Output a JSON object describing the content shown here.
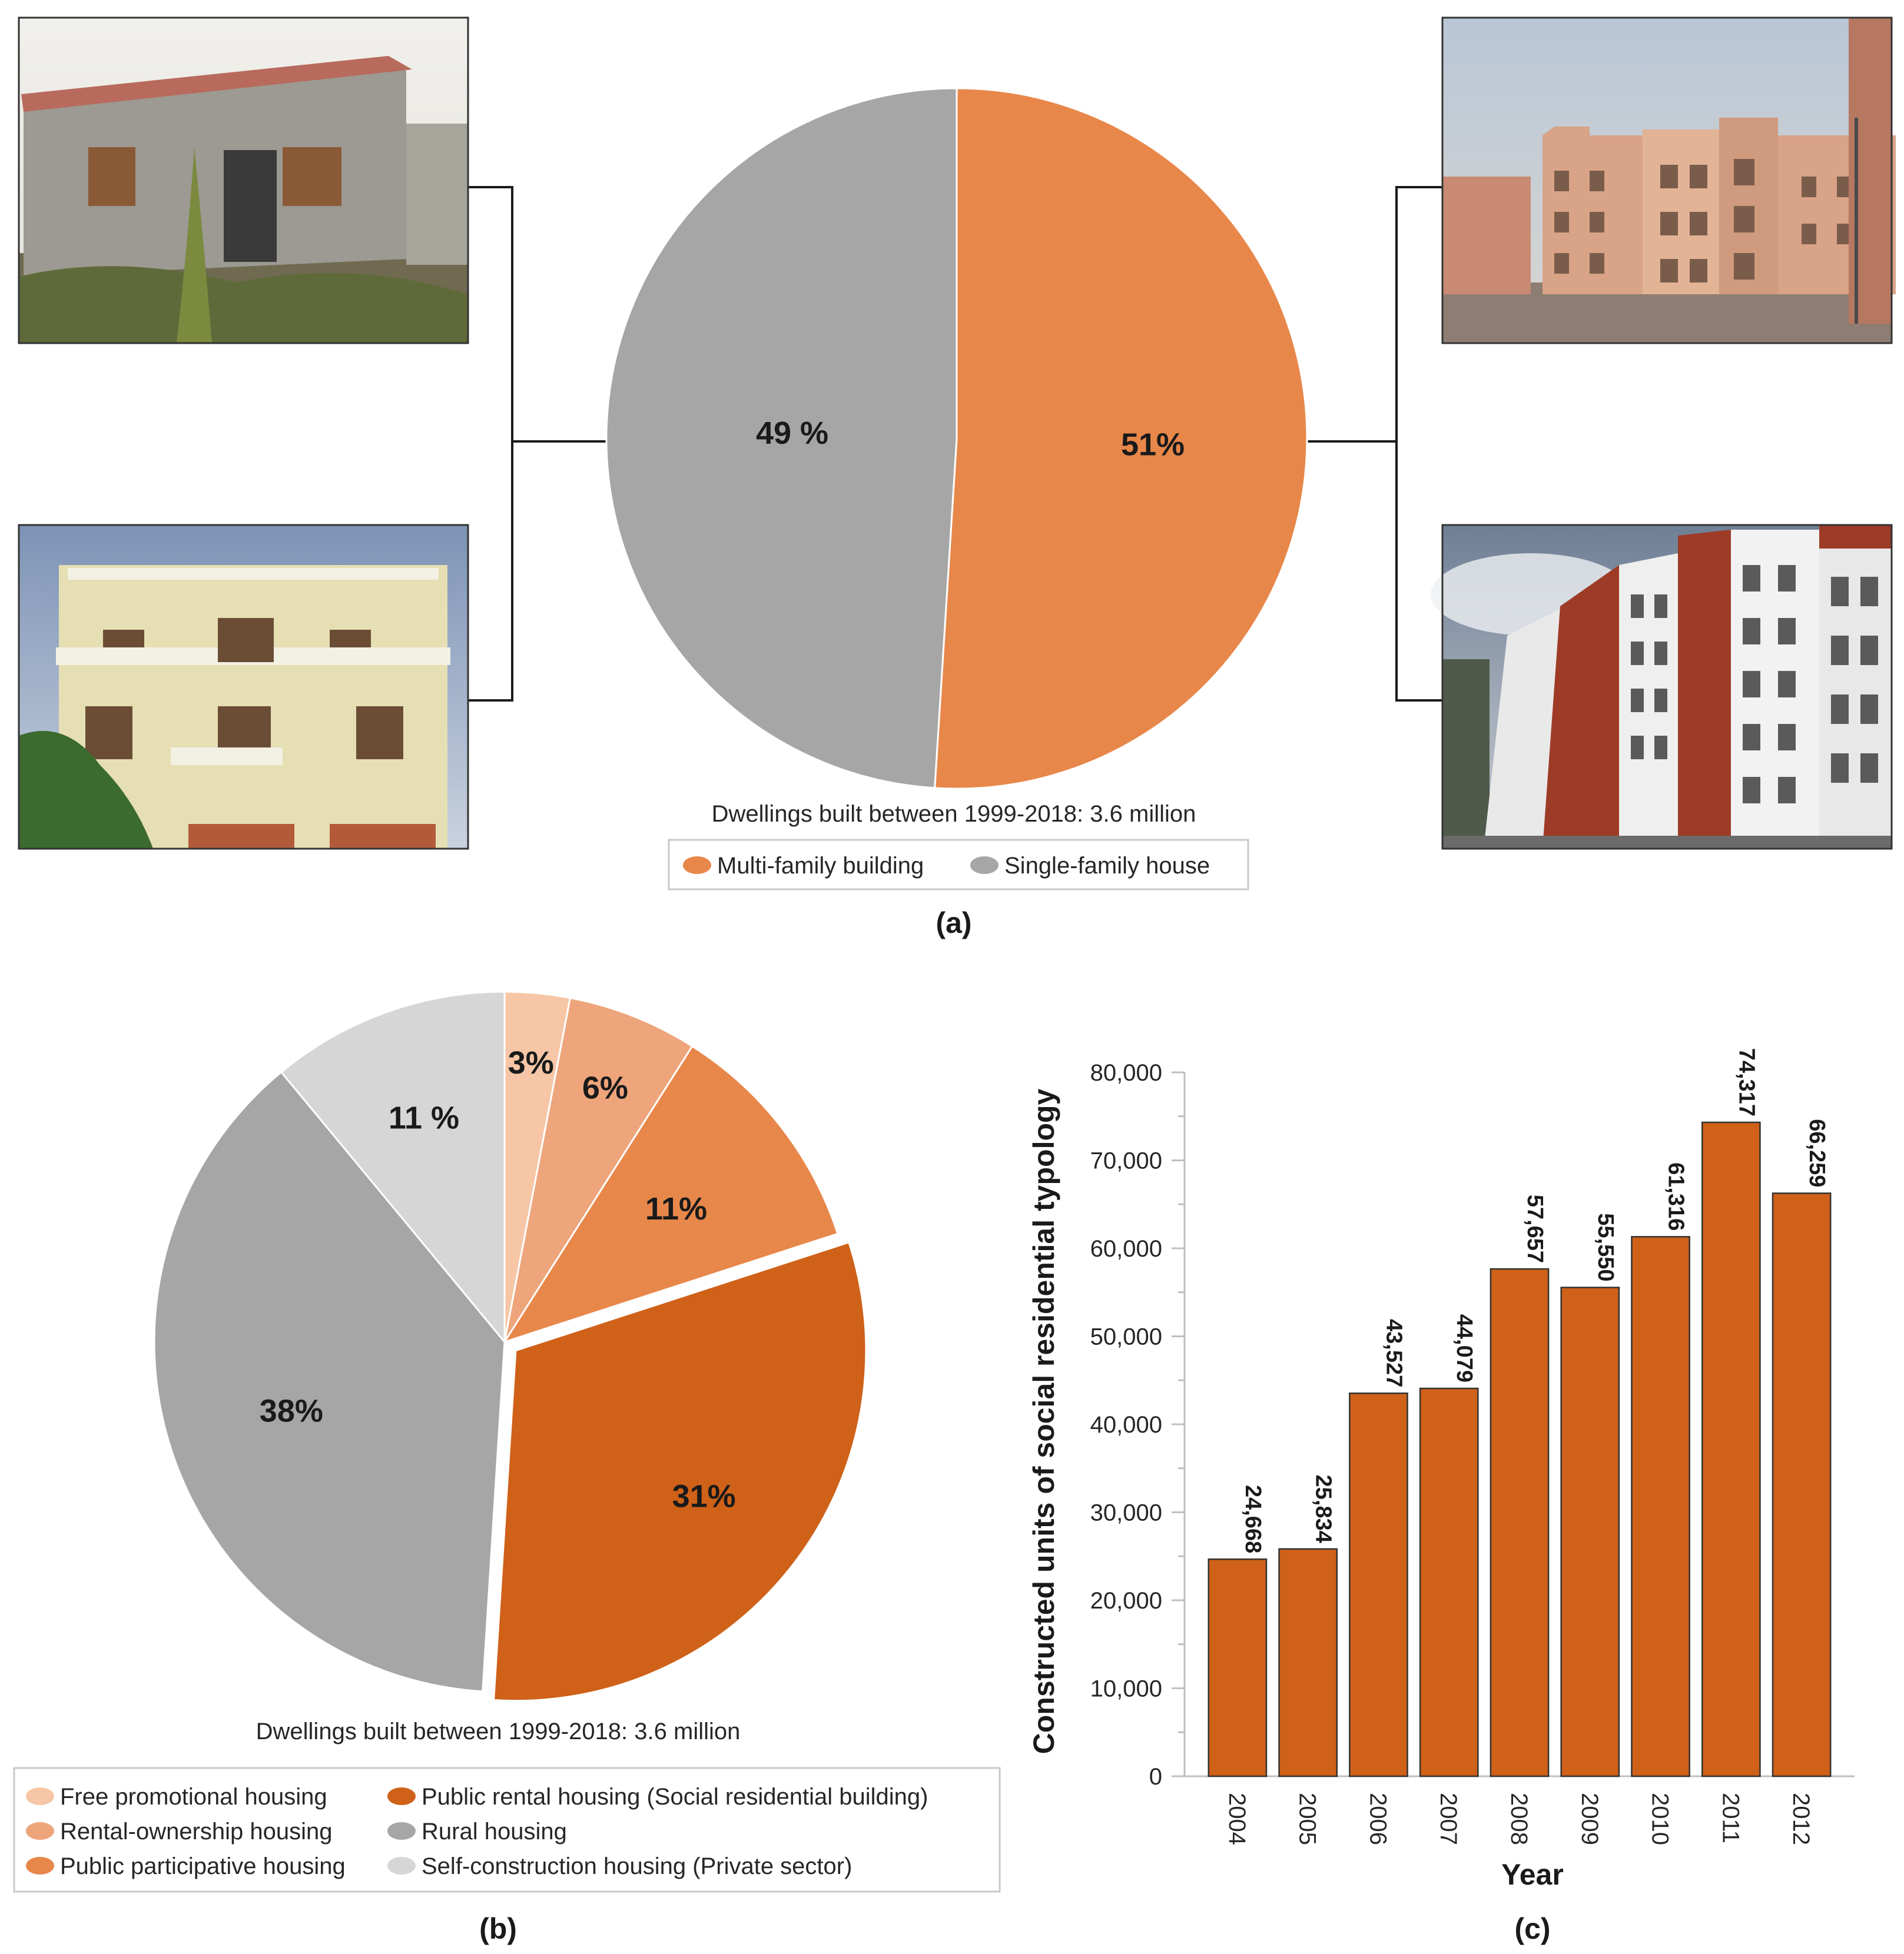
{
  "chart_data": [
    {
      "id": "a",
      "type": "pie",
      "panel_label": "(a)",
      "caption": "Dwellings built between 1999-2018: 3.6 million",
      "legend_position": "bottom",
      "slices": [
        {
          "name": "Multi-family building",
          "value": 51,
          "label": "51%",
          "color": "#E8874A"
        },
        {
          "name": "Single-family house",
          "value": 49,
          "label": "49 %",
          "color": "#A6A6A6"
        }
      ],
      "photos": [
        {
          "name": "single-family-house-photo-1",
          "description": "Unfinished single-family house"
        },
        {
          "name": "single-family-house-photo-2",
          "description": "Multi-storey single-family house"
        },
        {
          "name": "multi-family-building-photo-1",
          "description": "Social residential apartment block"
        },
        {
          "name": "multi-family-building-photo-2",
          "description": "High-rise apartment building"
        }
      ]
    },
    {
      "id": "b",
      "type": "pie",
      "panel_label": "(b)",
      "caption": "Dwellings built between 1999-2018: 3.6 million",
      "legend_position": "bottom-left",
      "slices": [
        {
          "name": "Free promotional housing",
          "value": 3,
          "label": "3%",
          "color": "#F6C6A6",
          "exploded": false
        },
        {
          "name": "Rental-ownership housing",
          "value": 6,
          "label": "6%",
          "color": "#EEA57C",
          "exploded": false
        },
        {
          "name": "Public participative housing",
          "value": 11,
          "label": "11%",
          "color": "#E8874A",
          "exploded": false
        },
        {
          "name": "Public rental housing (Social residential building)",
          "value": 31,
          "label": "31%",
          "color": "#CF6119",
          "exploded": true
        },
        {
          "name": "Rural housing",
          "value": 38,
          "label": "38%",
          "color": "#A6A6A6",
          "exploded": false
        },
        {
          "name": "Self-construction housing (Private sector)",
          "value": 11,
          "label": "11 %",
          "color": "#D6D6D6",
          "exploded": false
        }
      ]
    },
    {
      "id": "c",
      "type": "bar",
      "panel_label": "(c)",
      "xlabel": "Year",
      "ylabel": "Constructed units of social residential typology",
      "ylim": [
        0,
        80000
      ],
      "yticks": [
        0,
        10000,
        20000,
        30000,
        40000,
        50000,
        60000,
        70000,
        80000
      ],
      "ytick_labels": [
        "0",
        "10,000",
        "20,000",
        "30,000",
        "40,000",
        "50,000",
        "60,000",
        "70,000",
        "80,000"
      ],
      "categories": [
        "2004",
        "2005",
        "2006",
        "2007",
        "2008",
        "2009",
        "2010",
        "2011",
        "2012"
      ],
      "values": [
        24668,
        25834,
        43527,
        44079,
        57657,
        55550,
        61316,
        74317,
        66259
      ],
      "value_labels": [
        "24,668",
        "25,834",
        "43,527",
        "44,079",
        "57,657",
        "55,550",
        "61,316",
        "74,317",
        "66,259"
      ],
      "color": "#CF6119"
    }
  ]
}
